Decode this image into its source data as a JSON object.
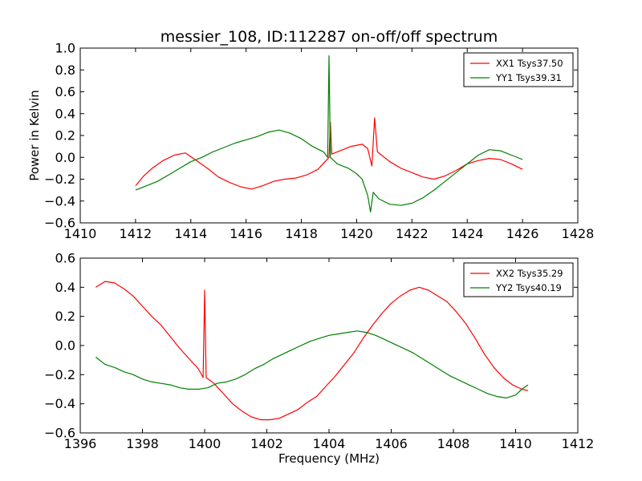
{
  "figure": {
    "title": "messier_108, ID:112287 on-off/off spectrum",
    "xlabel": "Frequency (MHz)",
    "ylabel": "Power in Kelvin"
  },
  "colors": {
    "xx": "#ff0000",
    "yy": "#008000",
    "axes": "#000000",
    "background": "#ffffff"
  },
  "chart_data": [
    {
      "type": "line",
      "title": "messier_108, ID:112287 on-off/off spectrum",
      "xlabel": "",
      "ylabel": "Power in Kelvin",
      "xlim": [
        1410,
        1428
      ],
      "ylim": [
        -0.6,
        1.0
      ],
      "xticks": [
        1410,
        1412,
        1414,
        1416,
        1418,
        1420,
        1422,
        1424,
        1426,
        1428
      ],
      "yticks": [
        -0.6,
        -0.4,
        -0.2,
        0.0,
        0.2,
        0.4,
        0.6,
        0.8,
        1.0
      ],
      "xtick_labels": [
        "1410",
        "1412",
        "1414",
        "1416",
        "1418",
        "1420",
        "1422",
        "1424",
        "1426",
        "1428"
      ],
      "ytick_labels": [
        "−0.6",
        "−0.4",
        "−0.2",
        "0.0",
        "0.2",
        "0.4",
        "0.6",
        "0.8",
        "1.0"
      ],
      "grid": false,
      "legend_position": "top-right",
      "series": [
        {
          "name": "XX1 Tsys37.50",
          "color": "#ff0000",
          "x": [
            1412.0,
            1412.3,
            1412.6,
            1413.0,
            1413.4,
            1413.8,
            1414.2,
            1414.6,
            1415.0,
            1415.4,
            1415.8,
            1416.2,
            1416.6,
            1417.0,
            1417.4,
            1417.8,
            1418.2,
            1418.6,
            1419.0,
            1419.05,
            1419.1,
            1419.4,
            1419.8,
            1420.2,
            1420.4,
            1420.55,
            1420.65,
            1420.75,
            1420.9,
            1421.2,
            1421.6,
            1422.0,
            1422.4,
            1422.8,
            1423.2,
            1423.6,
            1424.0,
            1424.4,
            1424.8,
            1425.2,
            1425.6,
            1426.0
          ],
          "y": [
            -0.26,
            -0.17,
            -0.1,
            -0.03,
            0.02,
            0.04,
            -0.03,
            -0.1,
            -0.18,
            -0.23,
            -0.27,
            -0.29,
            -0.26,
            -0.22,
            -0.2,
            -0.19,
            -0.16,
            -0.11,
            0.0,
            0.32,
            0.03,
            0.06,
            0.1,
            0.12,
            0.08,
            -0.08,
            0.36,
            0.05,
            0.02,
            -0.04,
            -0.1,
            -0.14,
            -0.18,
            -0.2,
            -0.17,
            -0.12,
            -0.06,
            -0.03,
            -0.01,
            -0.02,
            -0.06,
            -0.11
          ]
        },
        {
          "name": "YY1 Tsys39.31",
          "color": "#008000",
          "x": [
            1412.0,
            1412.4,
            1412.8,
            1413.2,
            1413.6,
            1414.0,
            1414.4,
            1414.8,
            1415.2,
            1415.6,
            1416.0,
            1416.4,
            1416.8,
            1417.2,
            1417.6,
            1418.0,
            1418.4,
            1418.8,
            1418.95,
            1419.0,
            1419.05,
            1419.3,
            1419.7,
            1420.0,
            1420.2,
            1420.4,
            1420.5,
            1420.6,
            1420.8,
            1421.2,
            1421.6,
            1422.0,
            1422.4,
            1422.8,
            1423.2,
            1423.6,
            1424.0,
            1424.4,
            1424.8,
            1425.2,
            1425.6,
            1426.0
          ],
          "y": [
            -0.3,
            -0.26,
            -0.22,
            -0.16,
            -0.1,
            -0.04,
            0.0,
            0.05,
            0.09,
            0.13,
            0.16,
            0.19,
            0.23,
            0.25,
            0.22,
            0.17,
            0.1,
            0.05,
            0.0,
            0.93,
            0.0,
            -0.06,
            -0.1,
            -0.15,
            -0.2,
            -0.35,
            -0.5,
            -0.32,
            -0.38,
            -0.43,
            -0.44,
            -0.42,
            -0.37,
            -0.3,
            -0.22,
            -0.14,
            -0.06,
            0.02,
            0.07,
            0.06,
            0.02,
            -0.02
          ]
        }
      ]
    },
    {
      "type": "line",
      "title": "",
      "xlabel": "Frequency (MHz)",
      "ylabel": "",
      "xlim": [
        1396,
        1412
      ],
      "ylim": [
        -0.6,
        0.6
      ],
      "xticks": [
        1396,
        1398,
        1400,
        1402,
        1404,
        1406,
        1408,
        1410,
        1412
      ],
      "yticks": [
        -0.6,
        -0.4,
        -0.2,
        0.0,
        0.2,
        0.4,
        0.6
      ],
      "xtick_labels": [
        "1396",
        "1398",
        "1400",
        "1402",
        "1404",
        "1406",
        "1408",
        "1410",
        "1412"
      ],
      "ytick_labels": [
        "−0.6",
        "−0.4",
        "−0.2",
        "0.0",
        "0.2",
        "0.4",
        "0.6"
      ],
      "grid": false,
      "legend_position": "top-right",
      "series": [
        {
          "name": "XX2 Tsys35.29",
          "color": "#ff0000",
          "x": [
            1396.5,
            1396.8,
            1397.1,
            1397.4,
            1397.7,
            1398.0,
            1398.3,
            1398.6,
            1398.9,
            1399.2,
            1399.5,
            1399.8,
            1399.95,
            1400.0,
            1400.05,
            1400.3,
            1400.6,
            1400.9,
            1401.2,
            1401.5,
            1401.8,
            1402.1,
            1402.4,
            1402.7,
            1403.0,
            1403.3,
            1403.6,
            1403.9,
            1404.2,
            1404.5,
            1404.8,
            1405.1,
            1405.4,
            1405.7,
            1406.0,
            1406.3,
            1406.6,
            1406.9,
            1407.2,
            1407.5,
            1407.8,
            1408.1,
            1408.4,
            1408.7,
            1409.0,
            1409.3,
            1409.6,
            1409.9,
            1410.2,
            1410.4
          ],
          "y": [
            0.4,
            0.44,
            0.43,
            0.39,
            0.34,
            0.27,
            0.2,
            0.14,
            0.06,
            -0.02,
            -0.09,
            -0.16,
            -0.22,
            0.38,
            -0.22,
            -0.26,
            -0.33,
            -0.4,
            -0.45,
            -0.49,
            -0.51,
            -0.51,
            -0.5,
            -0.47,
            -0.44,
            -0.39,
            -0.35,
            -0.28,
            -0.21,
            -0.13,
            -0.05,
            0.05,
            0.14,
            0.22,
            0.29,
            0.34,
            0.38,
            0.4,
            0.38,
            0.34,
            0.3,
            0.23,
            0.15,
            0.05,
            -0.06,
            -0.15,
            -0.22,
            -0.27,
            -0.3,
            -0.31
          ]
        },
        {
          "name": "YY2 Tsys40.19",
          "color": "#008000",
          "x": [
            1396.5,
            1396.8,
            1397.1,
            1397.4,
            1397.7,
            1398.0,
            1398.3,
            1398.6,
            1398.9,
            1399.2,
            1399.5,
            1399.8,
            1400.1,
            1400.4,
            1400.7,
            1401.0,
            1401.3,
            1401.6,
            1401.9,
            1402.2,
            1402.5,
            1402.8,
            1403.1,
            1403.4,
            1403.7,
            1404.0,
            1404.3,
            1404.6,
            1404.9,
            1405.2,
            1405.5,
            1405.8,
            1406.1,
            1406.4,
            1406.7,
            1407.0,
            1407.3,
            1407.6,
            1407.9,
            1408.2,
            1408.5,
            1408.8,
            1409.1,
            1409.4,
            1409.7,
            1410.0,
            1410.2,
            1410.4
          ],
          "y": [
            -0.08,
            -0.13,
            -0.15,
            -0.18,
            -0.2,
            -0.23,
            -0.25,
            -0.26,
            -0.27,
            -0.29,
            -0.3,
            -0.3,
            -0.29,
            -0.26,
            -0.25,
            -0.23,
            -0.2,
            -0.16,
            -0.13,
            -0.09,
            -0.06,
            -0.03,
            0.0,
            0.03,
            0.05,
            0.07,
            0.08,
            0.09,
            0.1,
            0.09,
            0.07,
            0.04,
            0.01,
            -0.02,
            -0.05,
            -0.09,
            -0.13,
            -0.17,
            -0.21,
            -0.24,
            -0.27,
            -0.3,
            -0.33,
            -0.35,
            -0.36,
            -0.34,
            -0.3,
            -0.27
          ]
        }
      ]
    }
  ]
}
